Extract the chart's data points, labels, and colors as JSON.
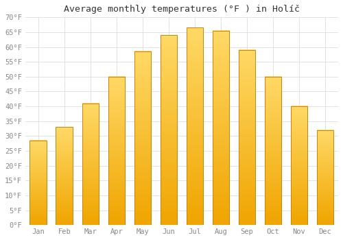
{
  "title": "Average monthly temperatures (°F ) in Holíč",
  "months": [
    "Jan",
    "Feb",
    "Mar",
    "Apr",
    "May",
    "Jun",
    "Jul",
    "Aug",
    "Sep",
    "Oct",
    "Nov",
    "Dec"
  ],
  "values": [
    28.5,
    33.0,
    41.0,
    50.0,
    58.5,
    64.0,
    66.5,
    65.5,
    59.0,
    50.0,
    40.0,
    32.0
  ],
  "bar_color_top": "#FFD966",
  "bar_color_bottom": "#F0A500",
  "bar_edge_color": "#C8860A",
  "background_color": "#FFFFFF",
  "grid_color": "#DDDDDD",
  "ylim": [
    0,
    70
  ],
  "yticks": [
    0,
    5,
    10,
    15,
    20,
    25,
    30,
    35,
    40,
    45,
    50,
    55,
    60,
    65,
    70
  ],
  "title_fontsize": 9.5,
  "tick_fontsize": 7.5,
  "tick_color": "#888888",
  "font_family": "monospace"
}
